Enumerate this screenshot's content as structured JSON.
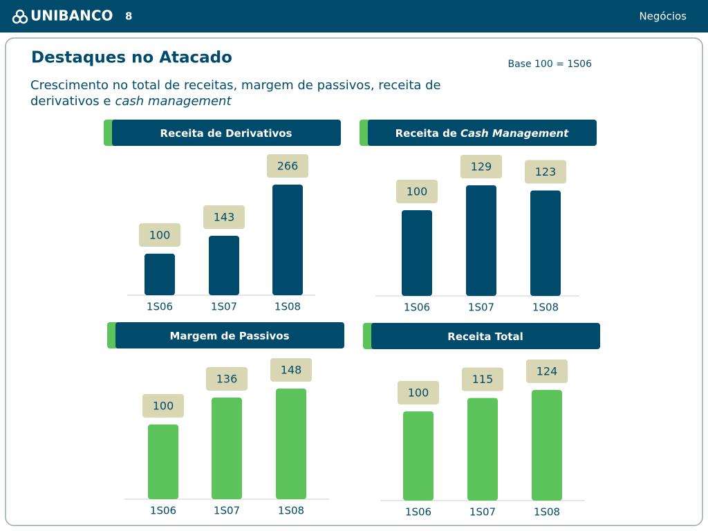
{
  "header": {
    "logo": "UNIBANCO",
    "page": "8",
    "section": "Negócios"
  },
  "title": "Destaques no Atacado",
  "subtitle_lines": [
    "Crescimento no total de receitas, margem de passivos, receita de",
    "derivativos e"
  ],
  "subtitle_italic": "cash management",
  "note": "Base 100 = 1S06",
  "chart_data": [
    {
      "type": "bar",
      "title": "Receita de Derivativos",
      "categories": [
        "1S06",
        "1S07",
        "1S08"
      ],
      "values": [
        100,
        143,
        266
      ],
      "color": "#004a6b"
    },
    {
      "type": "bar",
      "title": "Receita de",
      "title_italic": "Cash Management",
      "categories": [
        "1S06",
        "1S07",
        "1S08"
      ],
      "values": [
        100,
        129,
        123
      ],
      "color": "#004a6b"
    },
    {
      "type": "bar",
      "title": "Margem de Passivos",
      "categories": [
        "1S06",
        "1S07",
        "1S08"
      ],
      "values": [
        100,
        136,
        148
      ],
      "color": "#5cc45a"
    },
    {
      "type": "bar",
      "title": "Receita Total",
      "categories": [
        "1S06",
        "1S07",
        "1S08"
      ],
      "values": [
        100,
        115,
        124
      ],
      "color": "#5cc45a"
    }
  ]
}
